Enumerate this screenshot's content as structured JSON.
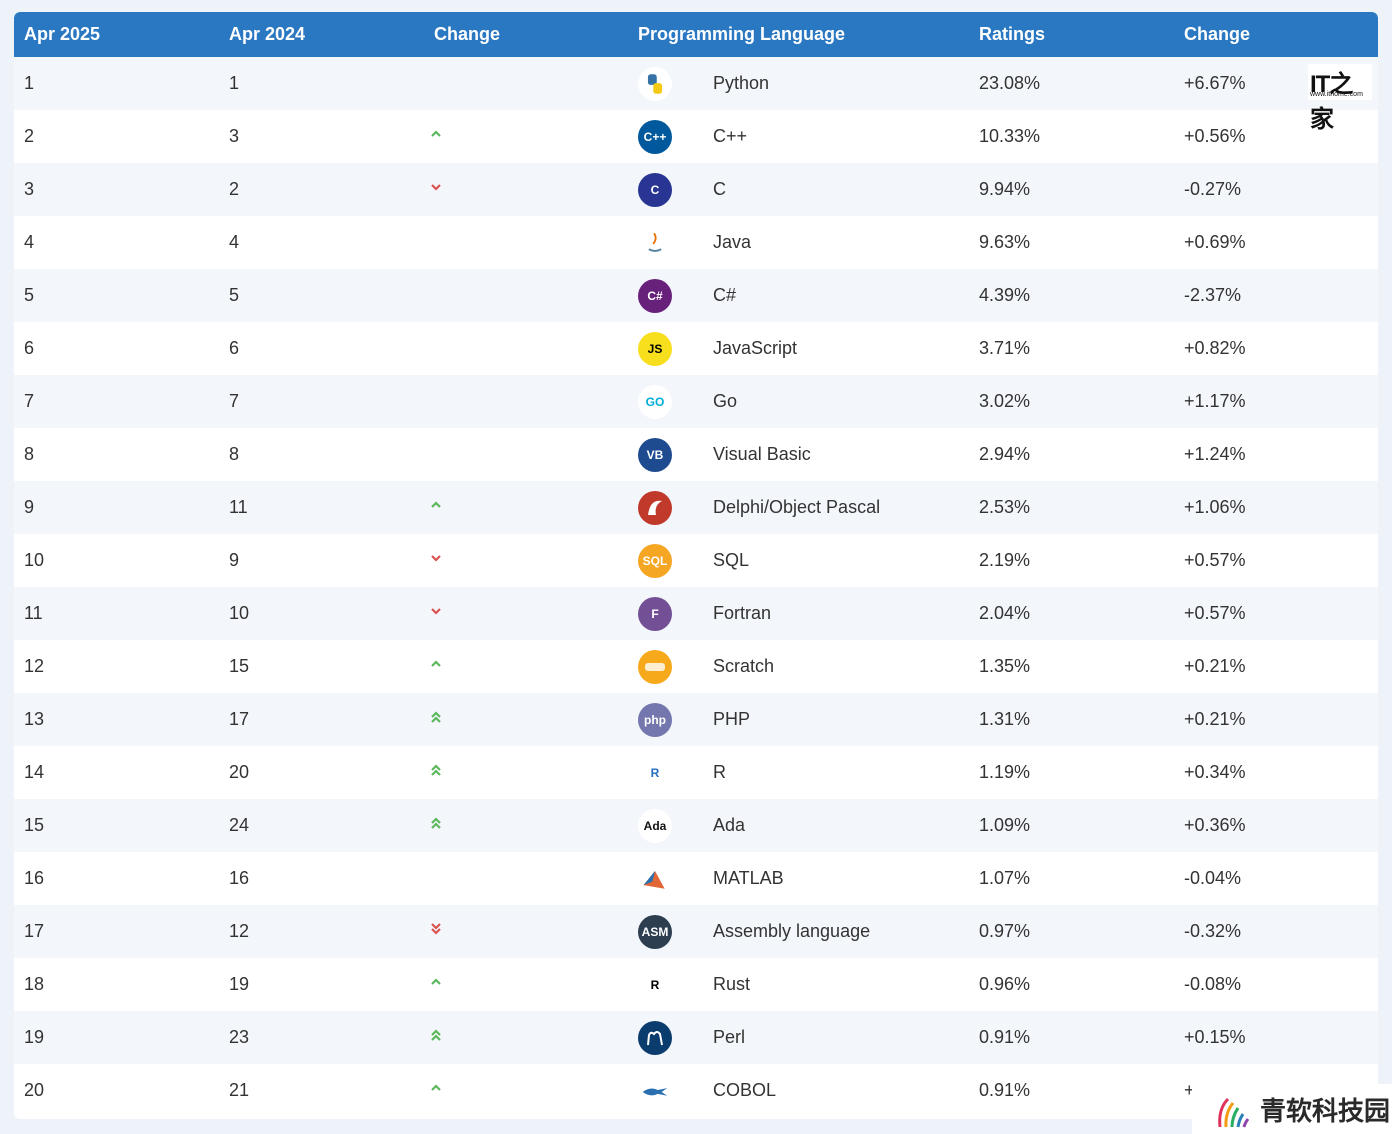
{
  "header": {
    "col1": "Apr 2025",
    "col2": "Apr 2024",
    "col3": "Change",
    "col4": "Programming Language",
    "col5": "Ratings",
    "col6": "Change"
  },
  "colors": {
    "header_bg": "#2b78c2",
    "up_arrow": "#5cb85c",
    "down_arrow": "#d9534f"
  },
  "rows": [
    {
      "rank": "1",
      "prev": "1",
      "trend": "none",
      "icon": "python-icon",
      "lang": "Python",
      "rating": "23.08%",
      "change": "+6.67%"
    },
    {
      "rank": "2",
      "prev": "3",
      "trend": "up",
      "icon": "cplusplus-icon",
      "lang": "C++",
      "rating": "10.33%",
      "change": "+0.56%"
    },
    {
      "rank": "3",
      "prev": "2",
      "trend": "down",
      "icon": "c-icon",
      "lang": "C",
      "rating": "9.94%",
      "change": "-0.27%"
    },
    {
      "rank": "4",
      "prev": "4",
      "trend": "none",
      "icon": "java-icon",
      "lang": "Java",
      "rating": "9.63%",
      "change": "+0.69%"
    },
    {
      "rank": "5",
      "prev": "5",
      "trend": "none",
      "icon": "csharp-icon",
      "lang": "C#",
      "rating": "4.39%",
      "change": "-2.37%"
    },
    {
      "rank": "6",
      "prev": "6",
      "trend": "none",
      "icon": "javascript-icon",
      "lang": "JavaScript",
      "rating": "3.71%",
      "change": "+0.82%"
    },
    {
      "rank": "7",
      "prev": "7",
      "trend": "none",
      "icon": "go-icon",
      "lang": "Go",
      "rating": "3.02%",
      "change": "+1.17%"
    },
    {
      "rank": "8",
      "prev": "8",
      "trend": "none",
      "icon": "visual-basic-icon",
      "lang": "Visual Basic",
      "rating": "2.94%",
      "change": "+1.24%"
    },
    {
      "rank": "9",
      "prev": "11",
      "trend": "up",
      "icon": "delphi-icon",
      "lang": "Delphi/Object Pascal",
      "rating": "2.53%",
      "change": "+1.06%"
    },
    {
      "rank": "10",
      "prev": "9",
      "trend": "down",
      "icon": "sql-icon",
      "lang": "SQL",
      "rating": "2.19%",
      "change": "+0.57%"
    },
    {
      "rank": "11",
      "prev": "10",
      "trend": "down",
      "icon": "fortran-icon",
      "lang": "Fortran",
      "rating": "2.04%",
      "change": "+0.57%"
    },
    {
      "rank": "12",
      "prev": "15",
      "trend": "up",
      "icon": "scratch-icon",
      "lang": "Scratch",
      "rating": "1.35%",
      "change": "+0.21%"
    },
    {
      "rank": "13",
      "prev": "17",
      "trend": "up2",
      "icon": "php-icon",
      "lang": "PHP",
      "rating": "1.31%",
      "change": "+0.21%"
    },
    {
      "rank": "14",
      "prev": "20",
      "trend": "up2",
      "icon": "r-icon",
      "lang": "R",
      "rating": "1.19%",
      "change": "+0.34%"
    },
    {
      "rank": "15",
      "prev": "24",
      "trend": "up2",
      "icon": "ada-icon",
      "lang": "Ada",
      "rating": "1.09%",
      "change": "+0.36%"
    },
    {
      "rank": "16",
      "prev": "16",
      "trend": "none",
      "icon": "matlab-icon",
      "lang": "MATLAB",
      "rating": "1.07%",
      "change": "-0.04%"
    },
    {
      "rank": "17",
      "prev": "12",
      "trend": "down2",
      "icon": "assembly-icon",
      "lang": "Assembly language",
      "rating": "0.97%",
      "change": "-0.32%"
    },
    {
      "rank": "18",
      "prev": "19",
      "trend": "up",
      "icon": "rust-icon",
      "lang": "Rust",
      "rating": "0.96%",
      "change": "-0.08%"
    },
    {
      "rank": "19",
      "prev": "23",
      "trend": "up2",
      "icon": "perl-icon",
      "lang": "Perl",
      "rating": "0.91%",
      "change": "+0.15%"
    },
    {
      "rank": "20",
      "prev": "21",
      "trend": "up",
      "icon": "cobol-icon",
      "lang": "COBOL",
      "rating": "0.91%",
      "change": "+"
    }
  ],
  "icon_labels": {
    "cplusplus-icon": "C++",
    "c-icon": "C",
    "csharp-icon": "C#",
    "javascript-icon": "JS",
    "go-icon": "GO",
    "visual-basic-icon": "VB",
    "sql-icon": "SQL",
    "fortran-icon": "F",
    "php-icon": "php",
    "r-icon": "R",
    "ada-icon": "Ada",
    "assembly-icon": "ASM",
    "rust-icon": "R"
  },
  "watermarks": {
    "it_logo": "IT之家",
    "it_url": "www.ithome.com",
    "site_name": "青软科技园"
  }
}
